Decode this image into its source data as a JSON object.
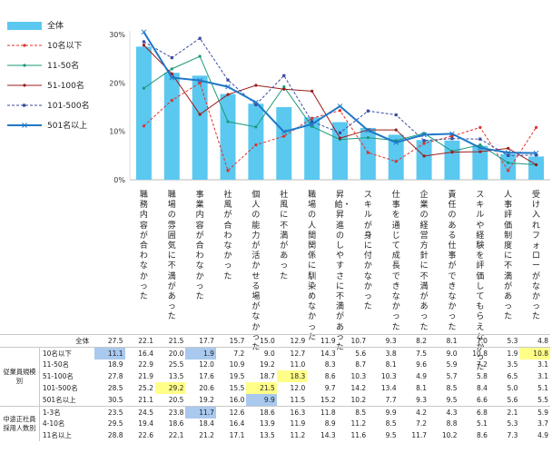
{
  "chart_data": {
    "type": "bar+line",
    "y_ticks": [
      "30%",
      "20%",
      "10%",
      "0%"
    ],
    "ylim": [
      0,
      30
    ],
    "categories": [
      "職務内容が合わなかった",
      "職場の雰囲気に不満があった",
      "事業内容が合わなかった",
      "社風が合わなかった",
      "個人の能力が活かせる場がなかった",
      "社風に不満があった",
      "職場の人間関係に馴染めなかった",
      "昇給・昇進のしやすさに不満があった",
      "スキルが身に付かなかった",
      "仕事を通じて成長できなかった",
      "企業の経営方針に不満があった",
      "責任のある仕事ができなかった",
      "スキルや経験を評価してもらえなかった",
      "人事評価制度に不満があった",
      "受け入れフォローがなかった"
    ],
    "legend": [
      {
        "key": "all",
        "label": "全体",
        "color": "#5bc8f0",
        "style": "bar"
      },
      {
        "key": "s10",
        "label": "10名以下",
        "color": "#e0302a",
        "style": "dashed-dot"
      },
      {
        "key": "s11_50",
        "label": "11-50名",
        "color": "#1a9a7a",
        "style": "solid-dot"
      },
      {
        "key": "s51_100",
        "label": "51-100名",
        "color": "#9c1c1c",
        "style": "solid-dot"
      },
      {
        "key": "s101_500",
        "label": "101-500名",
        "color": "#3a4aa0",
        "style": "dashed-square"
      },
      {
        "key": "s501",
        "label": "501名以上",
        "color": "#1e78c8",
        "style": "thick-x"
      }
    ],
    "series": [
      {
        "key": "all",
        "values": [
          27.5,
          22.1,
          21.5,
          17.7,
          15.7,
          15.0,
          12.9,
          11.9,
          10.7,
          9.3,
          8.2,
          8.1,
          7.0,
          5.3,
          4.8
        ]
      },
      {
        "key": "s10",
        "values": [
          11.1,
          16.4,
          20.0,
          1.9,
          7.2,
          9.0,
          12.7,
          14.3,
          5.6,
          3.8,
          7.5,
          9.0,
          10.8,
          1.9,
          10.8
        ]
      },
      {
        "key": "s11_50",
        "values": [
          18.9,
          22.9,
          25.5,
          12.0,
          10.9,
          19.2,
          11.0,
          8.3,
          8.7,
          8.1,
          9.6,
          5.9,
          7.2,
          3.5,
          3.1
        ]
      },
      {
        "key": "s51_100",
        "values": [
          27.8,
          21.9,
          13.5,
          17.6,
          19.5,
          18.7,
          18.3,
          8.6,
          10.3,
          10.3,
          4.9,
          5.7,
          5.8,
          6.5,
          3.1
        ]
      },
      {
        "key": "s101_500",
        "values": [
          28.5,
          25.2,
          29.2,
          20.6,
          15.5,
          21.5,
          12.0,
          9.7,
          14.2,
          13.4,
          8.1,
          8.5,
          8.4,
          5.0,
          5.1
        ]
      },
      {
        "key": "s501",
        "values": [
          30.5,
          21.1,
          20.5,
          19.2,
          16.0,
          9.9,
          11.5,
          15.2,
          10.2,
          7.7,
          9.3,
          9.5,
          6.6,
          5.6,
          5.5
        ]
      }
    ]
  },
  "table": {
    "groups": {
      "size": "従業員規模別",
      "hires": "中途正社員採用人数別"
    },
    "rows": [
      {
        "group": "",
        "label": "全体",
        "values": [
          "27.5",
          "22.1",
          "21.5",
          "17.7",
          "15.7",
          "15.0",
          "12.9",
          "11.9",
          "10.7",
          "9.3",
          "8.2",
          "8.1",
          "7.0",
          "5.3",
          "4.8"
        ],
        "hl": {}
      },
      {
        "group": "size",
        "label": "10名以下",
        "values": [
          "11.1",
          "16.4",
          "20.0",
          "1.9",
          "7.2",
          "9.0",
          "12.7",
          "14.3",
          "5.6",
          "3.8",
          "7.5",
          "9.0",
          "10.8",
          "1.9",
          "10.8"
        ],
        "hl": {
          "0": "blue",
          "3": "blue",
          "14": "yel"
        }
      },
      {
        "group": "size",
        "label": "11-50名",
        "values": [
          "18.9",
          "22.9",
          "25.5",
          "12.0",
          "10.9",
          "19.2",
          "11.0",
          "8.3",
          "8.7",
          "8.1",
          "9.6",
          "5.9",
          "7.2",
          "3.5",
          "3.1"
        ],
        "hl": {}
      },
      {
        "group": "size",
        "label": "51-100名",
        "values": [
          "27.8",
          "21.9",
          "13.5",
          "17.6",
          "19.5",
          "18.7",
          "18.3",
          "8.6",
          "10.3",
          "10.3",
          "4.9",
          "5.7",
          "5.8",
          "6.5",
          "3.1"
        ],
        "hl": {
          "6": "yel"
        }
      },
      {
        "group": "size",
        "label": "101-500名",
        "values": [
          "28.5",
          "25.2",
          "29.2",
          "20.6",
          "15.5",
          "21.5",
          "12.0",
          "9.7",
          "14.2",
          "13.4",
          "8.1",
          "8.5",
          "8.4",
          "5.0",
          "5.1"
        ],
        "hl": {
          "2": "yel",
          "5": "yel"
        }
      },
      {
        "group": "size",
        "label": "501名以上",
        "values": [
          "30.5",
          "21.1",
          "20.5",
          "19.2",
          "16.0",
          "9.9",
          "11.5",
          "15.2",
          "10.2",
          "7.7",
          "9.3",
          "9.5",
          "6.6",
          "5.6",
          "5.5"
        ],
        "hl": {
          "5": "blue"
        }
      },
      {
        "group": "hires",
        "label": "1-3名",
        "values": [
          "23.5",
          "24.5",
          "23.8",
          "11.7",
          "12.6",
          "18.6",
          "16.3",
          "11.8",
          "8.5",
          "9.9",
          "4.2",
          "4.3",
          "6.8",
          "2.1",
          "5.9"
        ],
        "hl": {
          "3": "blue"
        }
      },
      {
        "group": "hires",
        "label": "4-10名",
        "values": [
          "29.5",
          "19.4",
          "18.6",
          "18.4",
          "16.4",
          "13.9",
          "11.9",
          "8.9",
          "11.2",
          "8.5",
          "7.2",
          "8.8",
          "5.1",
          "5.3",
          "3.7"
        ],
        "hl": {}
      },
      {
        "group": "hires",
        "label": "11名以上",
        "values": [
          "28.8",
          "22.6",
          "22.1",
          "21.2",
          "17.1",
          "13.5",
          "11.2",
          "14.3",
          "11.6",
          "9.5",
          "11.7",
          "10.2",
          "8.6",
          "7.3",
          "4.9"
        ],
        "hl": {}
      }
    ]
  }
}
